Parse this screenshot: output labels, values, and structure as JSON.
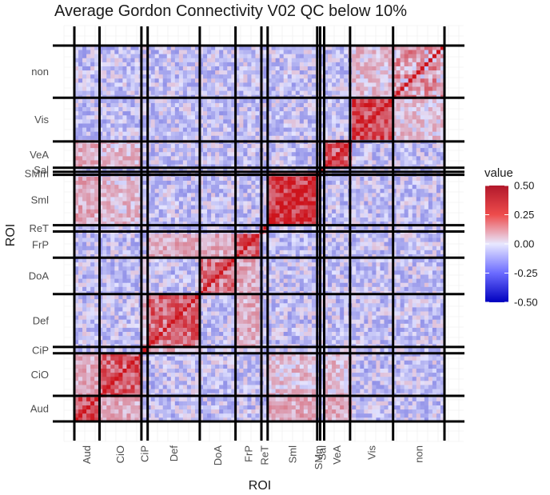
{
  "chart_data": {
    "type": "heatmap",
    "title": "Average Gordon Connectivity V02 QC below 10%",
    "xlabel": "ROI",
    "ylabel": "ROI",
    "networks": [
      "Aud",
      "CiO",
      "CiP",
      "Def",
      "DoA",
      "FrP",
      "ReT",
      "Sml",
      "SMm",
      "Sal",
      "VeA",
      "Vis",
      "non"
    ],
    "network_fractions": [
      0.069,
      0.115,
      0.017,
      0.143,
      0.098,
      0.071,
      0.017,
      0.136,
      0.008,
      0.011,
      0.071,
      0.118,
      0.141
    ],
    "diagonal_blocks": [
      {
        "row": "Aud",
        "col": "Aud",
        "mean": 0.3
      },
      {
        "row": "CiO",
        "col": "CiO",
        "mean": 0.28
      },
      {
        "row": "CiP",
        "col": "CiP",
        "mean": 0.3
      },
      {
        "row": "Def",
        "col": "Def",
        "mean": 0.25
      },
      {
        "row": "DoA",
        "col": "DoA",
        "mean": 0.22
      },
      {
        "row": "FrP",
        "col": "FrP",
        "mean": 0.27
      },
      {
        "row": "ReT",
        "col": "ReT",
        "mean": 0.2
      },
      {
        "row": "Sml",
        "col": "Sml",
        "mean": 0.38
      },
      {
        "row": "SMm",
        "col": "SMm",
        "mean": 0.3
      },
      {
        "row": "Sal",
        "col": "Sal",
        "mean": 0.25
      },
      {
        "row": "VeA",
        "col": "VeA",
        "mean": 0.28
      },
      {
        "row": "Vis",
        "col": "Vis",
        "mean": 0.35
      },
      {
        "row": "non",
        "col": "non",
        "mean": 0.12
      }
    ],
    "off_diagonal_blocks": [
      {
        "row": "Aud",
        "col": "Sml",
        "mean": 0.12
      },
      {
        "row": "Aud",
        "col": "CiO",
        "mean": 0.1
      },
      {
        "row": "CiO",
        "col": "Sml",
        "mean": 0.06
      },
      {
        "row": "CiO",
        "col": "VeA",
        "mean": 0.06
      },
      {
        "row": "Def",
        "col": "FrP",
        "mean": 0.09
      },
      {
        "row": "Def",
        "col": "CiP",
        "mean": 0.08
      },
      {
        "row": "DoA",
        "col": "FrP",
        "mean": 0.1
      },
      {
        "row": "Sml",
        "col": "SMm",
        "mean": 0.2
      },
      {
        "row": "Sml",
        "col": "Aud",
        "mean": 0.1
      },
      {
        "row": "VeA",
        "col": "Aud",
        "mean": 0.1
      },
      {
        "row": "Vis",
        "col": "non",
        "mean": 0.05
      }
    ],
    "default_block_mean": -0.04,
    "legend": {
      "title": "value",
      "placement": "right",
      "breaks": [
        "0.50",
        "0.25",
        "0.00",
        "-0.25",
        "-0.50"
      ],
      "range": [
        -0.5,
        0.5
      ]
    },
    "colors": {
      "low": "#0000bf",
      "mid": "#ffffff",
      "high": "#d7191c",
      "grid": "#ebebeb",
      "boundary": "#000000"
    }
  }
}
